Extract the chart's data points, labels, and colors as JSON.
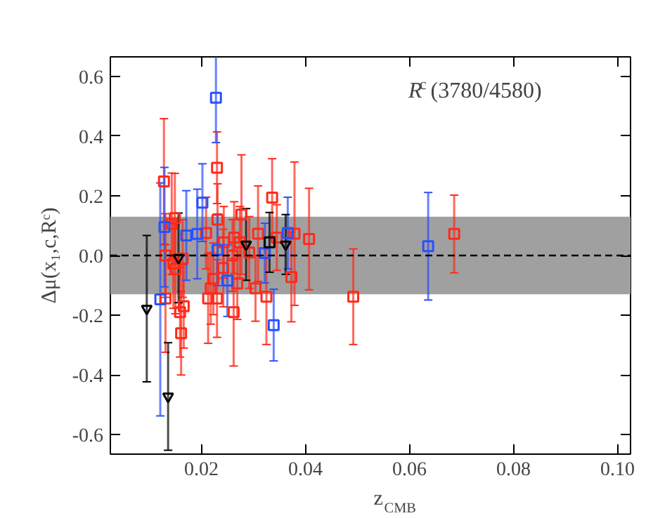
{
  "chart_data": {
    "type": "scatter",
    "xlabel": "z$_{CMB}$",
    "ylabel": "Δμ(x₁,c,Rᶜ)",
    "annotations": [
      "R$^{c}$(3780/4580)"
    ],
    "xlim": [
      0.0025,
      0.1025
    ],
    "ylim": [
      -0.665,
      0.665
    ],
    "xticks": [
      {
        "value": 0.02,
        "label": "0.02"
      },
      {
        "value": 0.04,
        "label": "0.04"
      },
      {
        "value": 0.06,
        "label": "0.06"
      },
      {
        "value": 0.08,
        "label": "0.08"
      },
      {
        "value": 0.1,
        "label": "0.10"
      }
    ],
    "yticks": [
      {
        "value": -0.6,
        "label": "-0.6"
      },
      {
        "value": -0.4,
        "label": "-0.4"
      },
      {
        "value": -0.2,
        "label": "-0.2"
      },
      {
        "value": 0,
        "label": "0.0"
      },
      {
        "value": 0.2,
        "label": "0.2"
      },
      {
        "value": 0.4,
        "label": "0.4"
      },
      {
        "value": 0.6,
        "label": "0.6"
      }
    ],
    "grid": false,
    "ref_lines": [
      {
        "axis": "y",
        "value": 0,
        "label": null,
        "color": "#000000",
        "line_style": "dashed"
      }
    ],
    "bands": [
      {
        "axis": "y",
        "from": -0.13,
        "to": 0.13,
        "label": null,
        "color": "#a0a0a0"
      }
    ],
    "series": [
      {
        "color": "#ff2a1a",
        "marker": "square",
        "x": [
          0.0128,
          0.0131,
          0.0131,
          0.0143,
          0.0146,
          0.0149,
          0.015,
          0.0159,
          0.0161,
          0.0164,
          0.0166,
          0.0209,
          0.0213,
          0.0218,
          0.0223,
          0.023,
          0.0231,
          0.023,
          0.0243,
          0.0242,
          0.026,
          0.0263,
          0.0262,
          0.0269,
          0.0274,
          0.0277,
          0.0292,
          0.0304,
          0.0309,
          0.0325,
          0.0336,
          0.0345,
          0.0373,
          0.0379,
          0.0407,
          0.0492,
          0.0686
        ],
        "values": [
          0.248,
          0.0,
          -0.144,
          0.106,
          -0.027,
          0.125,
          -0.045,
          -0.19,
          -0.26,
          -0.01,
          -0.17,
          0.075,
          -0.144,
          -0.11,
          -0.078,
          0.294,
          0.12,
          -0.144,
          0.044,
          -0.042,
          0.0,
          0.06,
          -0.19,
          -0.094,
          0.044,
          0.137,
          0.01,
          -0.11,
          0.073,
          -0.138,
          0.194,
          0.06,
          -0.072,
          0.073,
          0.055,
          -0.138,
          0.072
        ],
        "errors": [
          0.21,
          0.14,
          0.18,
          0.17,
          0.15,
          0.15,
          0.15,
          0.15,
          0.14,
          0.13,
          0.14,
          0.12,
          0.15,
          0.12,
          0.12,
          0.12,
          0.12,
          0.13,
          0.12,
          0.13,
          0.12,
          0.12,
          0.18,
          0.12,
          0.12,
          0.2,
          0.12,
          0.11,
          0.16,
          0.16,
          0.13,
          0.11,
          0.15,
          0.24,
          0.17,
          0.16,
          0.13
        ]
      },
      {
        "color": "#2a4fff",
        "marker": "square",
        "x": [
          0.0121,
          0.0129,
          0.0171,
          0.0192,
          0.0202,
          0.0228,
          0.0231,
          0.025,
          0.0322,
          0.0339,
          0.0366,
          0.0636
        ],
        "values": [
          -0.147,
          0.095,
          0.067,
          0.072,
          0.177,
          0.528,
          0.019,
          -0.084,
          0.008,
          -0.233,
          0.075,
          0.031
        ],
        "errors": [
          0.39,
          0.2,
          0.15,
          0.15,
          0.13,
          0.15,
          0.12,
          0.12,
          0.1,
          0.12,
          0.12,
          0.18
        ]
      },
      {
        "color": "#000000",
        "marker": "triangle",
        "x": [
          0.0095,
          0.0136,
          0.0156,
          0.0286,
          0.0362
        ],
        "values": [
          -0.178,
          -0.472,
          -0.008,
          0.037,
          0.037
        ],
        "errors": [
          0.245,
          0.18,
          0.15,
          0.12,
          0.1
        ]
      },
      {
        "color": "#000000",
        "marker": "square",
        "x": [
          0.0331
        ],
        "values": [
          0.044
        ],
        "errors": [
          0.1
        ]
      }
    ]
  }
}
